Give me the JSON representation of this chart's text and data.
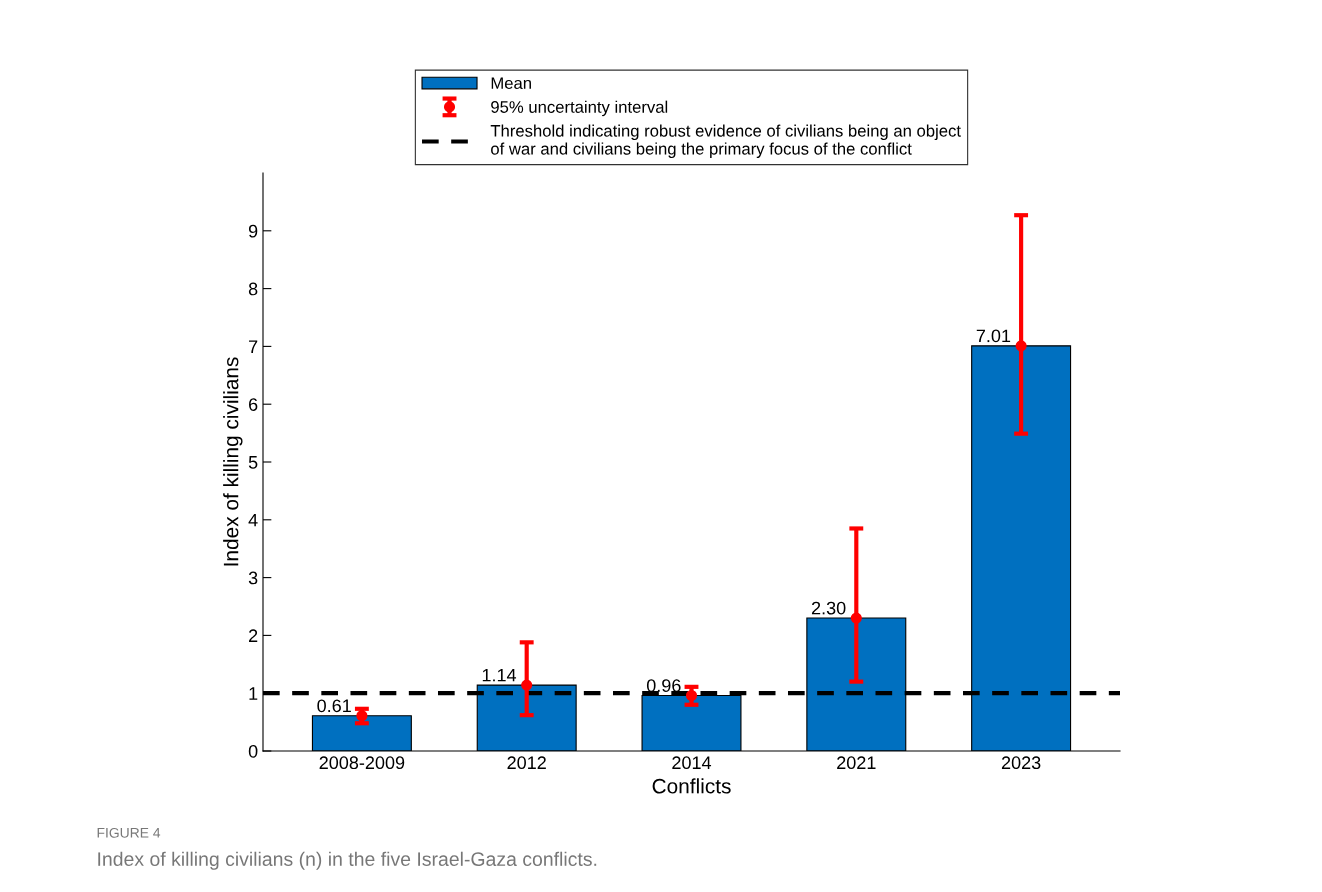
{
  "chart_data": {
    "type": "bar",
    "xlabel": "Conflicts",
    "ylabel": "Index of killing civilians",
    "categories": [
      "2008-2009",
      "2012",
      "2014",
      "2021",
      "2023"
    ],
    "series": [
      {
        "name": "Mean",
        "color": "#0070c0",
        "values": [
          0.61,
          1.14,
          0.96,
          2.3,
          7.01
        ],
        "value_labels": [
          "0.61",
          "1.14",
          "0.96",
          "2.30",
          "7.01"
        ]
      },
      {
        "name": "95% uncertainty interval",
        "type": "scatter",
        "color": "#ff0000",
        "marker": "circle",
        "values": [
          0.61,
          1.14,
          0.96,
          2.3,
          7.01
        ],
        "errors": [
          [
            0.48,
            0.73
          ],
          [
            0.62,
            1.88
          ],
          [
            0.8,
            1.11
          ],
          [
            1.2,
            3.85
          ],
          [
            5.49,
            9.27
          ]
        ]
      }
    ],
    "ylim": [
      0,
      10
    ],
    "yticks": [
      0,
      1,
      2,
      3,
      4,
      5,
      6,
      7,
      8,
      9
    ],
    "ref_lines": [
      {
        "axis": "y",
        "value": 1,
        "label": "Threshold indicating robust evidence of civilians being an object\nof war and civilians being the primary focus of the conflict",
        "color": "#000000",
        "line_style": "dashed"
      }
    ],
    "legend": "top",
    "grid": false,
    "annotations": [
      "FIGURE 4",
      "Index of killing civilians (n) in the five Israel-Gaza conflicts."
    ]
  }
}
